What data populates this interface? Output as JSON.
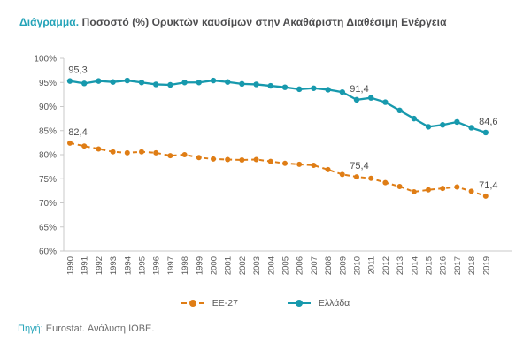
{
  "header": {
    "label_accent": "Διάγραμμα.",
    "label_rest": " Ποσοστό (%) Ορυκτών καυσίμων στην Ακαθάριστη Διαθέσιμη Ενέργεια"
  },
  "footer": {
    "source_prefix": "Πηγή:",
    "source_text": " Eurostat. Ανάλυση ΙΟΒΕ."
  },
  "colors": {
    "teal_line": "#1799AD",
    "orange_line": "#DF7D15",
    "title_accent": "#23A3B8",
    "axis_line": "#C9C9C9",
    "tick_text": "#595959",
    "data_label_text": "#4D4D4D"
  },
  "chart_data": {
    "type": "line",
    "title": "Ποσοστό (%) Ορυκτών καυσίμων στην Ακαθάριστη Διαθέσιμη Ενέργεια",
    "x": [
      1990,
      1991,
      1992,
      1993,
      1994,
      1995,
      1996,
      1997,
      1998,
      1999,
      2000,
      2001,
      2002,
      2003,
      2004,
      2005,
      2006,
      2007,
      2008,
      2009,
      2010,
      2011,
      2012,
      2013,
      2014,
      2015,
      2016,
      2017,
      2018,
      2019
    ],
    "xlabel": "",
    "ylabel": "",
    "ylim": [
      60,
      100
    ],
    "ytick_step": 5,
    "ytick_suffix": "%",
    "grid": false,
    "legend_position": "bottom-center",
    "series": [
      {
        "name": "EE-27",
        "color": "#DF7D15",
        "style": "dashed",
        "values": [
          82.4,
          81.8,
          81.2,
          80.6,
          80.4,
          80.6,
          80.4,
          79.8,
          80.0,
          79.4,
          79.1,
          79.0,
          78.9,
          79.0,
          78.6,
          78.2,
          78.0,
          77.8,
          76.9,
          75.9,
          75.4,
          75.1,
          74.2,
          73.4,
          72.3,
          72.7,
          73.0,
          73.3,
          72.4,
          71.4
        ]
      },
      {
        "name": "Ελλάδα",
        "color": "#1799AD",
        "style": "solid",
        "values": [
          95.3,
          94.8,
          95.3,
          95.1,
          95.4,
          95.0,
          94.6,
          94.5,
          95.0,
          95.0,
          95.4,
          95.1,
          94.7,
          94.6,
          94.3,
          94.0,
          93.6,
          93.8,
          93.5,
          93.0,
          91.4,
          91.8,
          90.9,
          89.2,
          87.5,
          85.8,
          86.2,
          86.8,
          85.6,
          84.6
        ]
      }
    ],
    "annotations": [
      {
        "series": "Ελλάδα",
        "x": 1990,
        "label": "95,3",
        "dx": 9
      },
      {
        "series": "Ελλάδα",
        "x": 2010,
        "label": "91,4",
        "dx": 3
      },
      {
        "series": "Ελλάδα",
        "x": 2019,
        "label": "84,6",
        "dx": 3
      },
      {
        "series": "EE-27",
        "x": 1990,
        "label": "82,4",
        "dx": 9
      },
      {
        "series": "EE-27",
        "x": 2010,
        "label": "75,4",
        "dx": 3
      },
      {
        "series": "EE-27",
        "x": 2019,
        "label": "71,4",
        "dx": 3
      }
    ]
  }
}
